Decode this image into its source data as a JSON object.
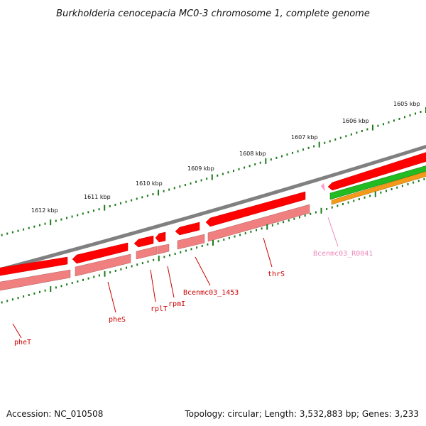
{
  "title": "Burkholderia cenocepacia MC0-3 chromosome 1, complete genome",
  "scale": {
    "unit": "kbp",
    "ticks": [
      {
        "label": "1605 kbp",
        "kbp": 1605
      },
      {
        "label": "1606 kbp",
        "kbp": 1606
      },
      {
        "label": "1607 kbp",
        "kbp": 1607
      },
      {
        "label": "1608 kbp",
        "kbp": 1608
      },
      {
        "label": "1609 kbp",
        "kbp": 1609
      },
      {
        "label": "1610 kbp",
        "kbp": 1610
      },
      {
        "label": "1611 kbp",
        "kbp": 1611
      },
      {
        "label": "1612 kbp",
        "kbp": 1612
      }
    ]
  },
  "genes": [
    {
      "label": "pheT",
      "color": "#cc0000"
    },
    {
      "label": "pheS",
      "color": "#cc0000"
    },
    {
      "label": "rplT",
      "color": "#cc0000"
    },
    {
      "label": "rpmI",
      "color": "#cc0000"
    },
    {
      "label": "Bcenmc03_1453",
      "color": "#cc0000"
    },
    {
      "label": "thrS",
      "color": "#cc0000"
    },
    {
      "label": "Bcenmc03_R0041",
      "color": "#ee88bb"
    }
  ],
  "colors": {
    "backbone": "#808080",
    "cds": "#ff0000",
    "gene": "#f08080",
    "trna": "#ff99cc",
    "other_feature": "#22bb22",
    "other_feature_2": "#f39a1a",
    "tick": "#1a7a1a"
  },
  "footer": {
    "accession": "Accession: NC_010508",
    "summary": "Topology: circular; Length: 3,532,883 bp; Genes: 3,233"
  }
}
